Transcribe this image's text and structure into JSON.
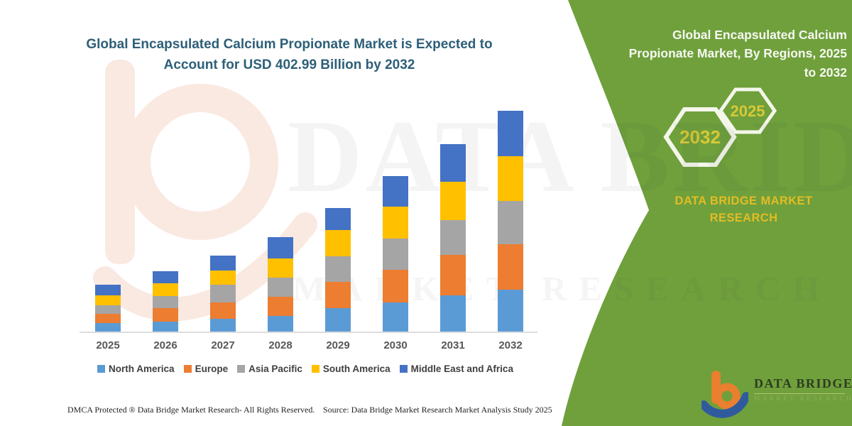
{
  "header": {
    "title": "Global Encapsulated Calcium Propionate Market is Expected to Account for USD 402.99 Billion by 2032"
  },
  "right_panel": {
    "title_lines": [
      "Global Encapsulated Calcium",
      "Propionate Market, By Regions, 2025",
      "to 2032"
    ],
    "hexagons": {
      "front_year": "2025",
      "back_year": "2032"
    },
    "caption_lines": [
      "DATA BRIDGE MARKET",
      "RESEARCH"
    ],
    "logo": {
      "brand": "DATA BRIDGE",
      "sub": "MARKET RESEARCH"
    }
  },
  "watermark": {
    "row1": "DATA BRIDGE",
    "row2": "MARKET RESEARCH"
  },
  "footer": {
    "dmca": "DMCA Protected ® Data Bridge Market Research- All Rights Reserved.",
    "source": "Source: Data Bridge Market Research Market Analysis Study 2025"
  },
  "colors": {
    "panel_green": "#6FA03C",
    "title_teal": "#2D5F78",
    "hex_year_yellow": "#D8C836",
    "caption_yellow": "#E3BC25",
    "baseline_gray": "#DCDCDC"
  },
  "chart_data": {
    "type": "bar",
    "stacked": true,
    "title": "Global Encapsulated Calcium Propionate Market is Expected to Account for USD 402.99 Billion by 2032",
    "unit": "USD Billion",
    "note": "Values estimated from bar heights; no numeric axis shown. 2032 total = 402.99 USD Billion.",
    "categories": [
      "2025",
      "2026",
      "2027",
      "2028",
      "2029",
      "2030",
      "2031",
      "2032"
    ],
    "series": [
      {
        "name": "North America",
        "color": "#5B9BD5",
        "values": [
          16.5,
          19.5,
          24.5,
          30.0,
          44.0,
          54.0,
          67.0,
          77.5
        ]
      },
      {
        "name": "Europe",
        "color": "#ED7D31",
        "values": [
          17.0,
          24.0,
          29.5,
          35.0,
          47.5,
          59.5,
          73.5,
          82.5
        ]
      },
      {
        "name": "Asia Pacific",
        "color": "#A5A5A5",
        "values": [
          15.5,
          23.0,
          32.0,
          34.0,
          46.5,
          57.0,
          63.5,
          79.0
        ]
      },
      {
        "name": "South America",
        "color": "#FFC000",
        "values": [
          18.0,
          23.0,
          27.0,
          36.0,
          47.5,
          58.0,
          70.0,
          81.5
        ]
      },
      {
        "name": "Middle East and Africa",
        "color": "#4472C4",
        "values": [
          19.5,
          21.0,
          27.0,
          38.0,
          40.5,
          55.5,
          68.0,
          82.5
        ]
      }
    ],
    "totals": [
      86.5,
      110.5,
      140.0,
      173.0,
      226.0,
      284.0,
      342.0,
      403.0
    ],
    "legend_position": "bottom",
    "grid": false,
    "axes_hidden": true
  }
}
